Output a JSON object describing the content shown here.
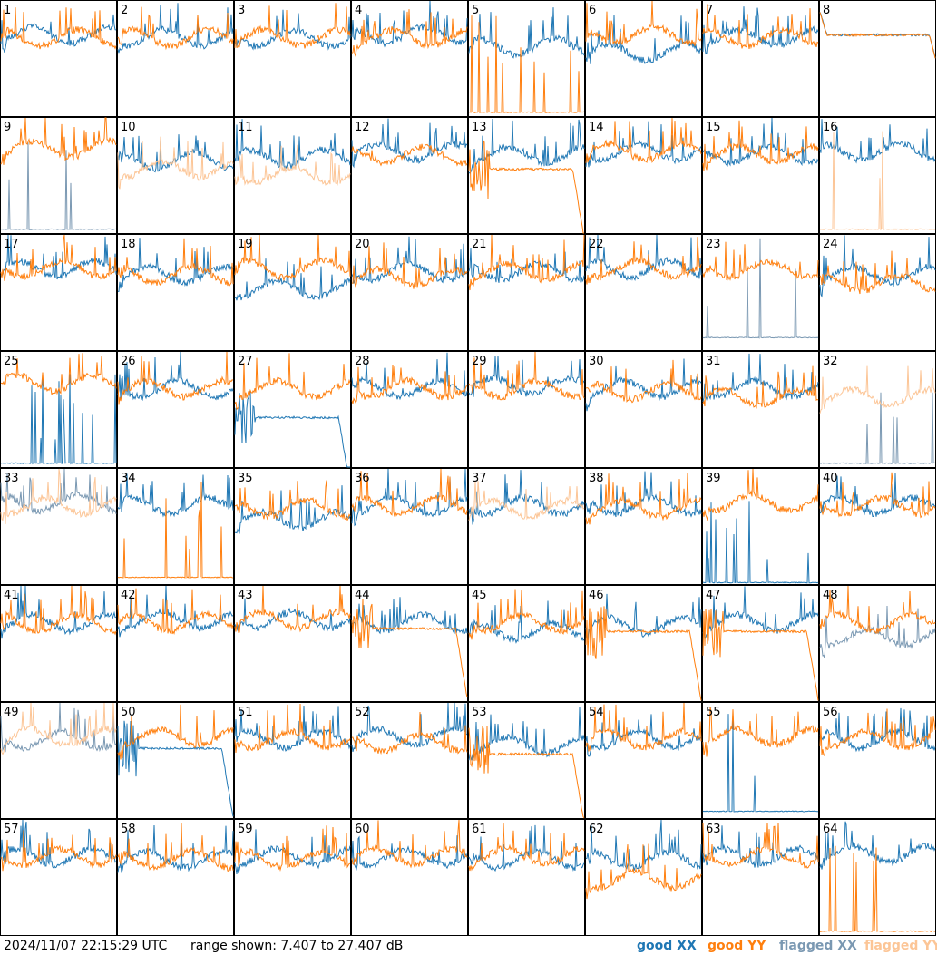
{
  "footer": {
    "timestamp": "2024/11/07 22:15:29 UTC",
    "range_text": "range shown: 7.407 to 27.407 dB"
  },
  "legend": [
    {
      "key": "good_xx",
      "label": "good XX",
      "color": "#1f77b4"
    },
    {
      "key": "good_yy",
      "label": "good YY",
      "color": "#ff7f0e"
    },
    {
      "key": "flagged_xx",
      "label": "flagged XX",
      "color": "#7a98b2"
    },
    {
      "key": "flagged_yy",
      "label": "flagged YY",
      "color": "#fcc596"
    }
  ],
  "chart_data": {
    "type": "line",
    "layout": "small-multiples 8x8",
    "ylim": [
      7.407,
      27.407
    ],
    "yunit": "dB",
    "series_names": [
      "good XX",
      "good YY",
      "flagged XX",
      "flagged YY"
    ],
    "panels": [
      {
        "id": 1,
        "xx": "good",
        "yy": "good",
        "xx_shape": "normal",
        "yy_shape": "normal",
        "xx_base": 21.5,
        "yy_base": 21.0
      },
      {
        "id": 2,
        "xx": "good",
        "yy": "good",
        "xx_shape": "normal",
        "yy_shape": "normal",
        "xx_base": 21.0,
        "yy_base": 21.0
      },
      {
        "id": 3,
        "xx": "good",
        "yy": "good",
        "xx_shape": "normal",
        "yy_shape": "normal",
        "xx_base": 21.0,
        "yy_base": 21.0
      },
      {
        "id": 4,
        "xx": "good",
        "yy": "good",
        "xx_shape": "normal",
        "yy_shape": "normal",
        "xx_base": 21.5,
        "yy_base": 21.0
      },
      {
        "id": 5,
        "xx": "good",
        "yy": "good",
        "xx_shape": "normal",
        "yy_shape": "spiky_low",
        "xx_base": 19.5,
        "yy_base": 8.0
      },
      {
        "id": 6,
        "xx": "good",
        "yy": "good",
        "xx_shape": "normal",
        "yy_shape": "normal",
        "xx_base": 18.5,
        "yy_base": 21.5
      },
      {
        "id": 7,
        "xx": "good",
        "yy": "good",
        "xx_shape": "normal",
        "yy_shape": "normal",
        "xx_base": 21.0,
        "yy_base": 21.0
      },
      {
        "id": 8,
        "xx": "good",
        "yy": "good",
        "xx_shape": "flat",
        "yy_shape": "flat",
        "xx_base": 21.5,
        "yy_base": 21.5
      },
      {
        "id": 9,
        "xx": "flagged",
        "yy": "good",
        "xx_shape": "spiky_low",
        "yy_shape": "normal",
        "xx_base": 8.0,
        "yy_base": 22.0
      },
      {
        "id": 10,
        "xx": "good",
        "yy": "flagged",
        "xx_shape": "normal",
        "yy_shape": "normal",
        "xx_base": 20.0,
        "yy_base": 18.5
      },
      {
        "id": 11,
        "xx": "good",
        "yy": "flagged",
        "xx_shape": "normal",
        "yy_shape": "normal",
        "xx_base": 20.5,
        "yy_base": 17.5
      },
      {
        "id": 12,
        "xx": "good",
        "yy": "good",
        "xx_shape": "normal",
        "yy_shape": "normal",
        "xx_base": 21.5,
        "yy_base": 21.0
      },
      {
        "id": 13,
        "xx": "good",
        "yy": "good",
        "xx_shape": "normal",
        "yy_shape": "decay",
        "xx_base": 21.0,
        "yy_base": 18.5
      },
      {
        "id": 14,
        "xx": "good",
        "yy": "good",
        "xx_shape": "normal",
        "yy_shape": "normal",
        "xx_base": 21.5,
        "yy_base": 21.5
      },
      {
        "id": 15,
        "xx": "good",
        "yy": "good",
        "xx_shape": "normal",
        "yy_shape": "normal",
        "xx_base": 21.0,
        "yy_base": 21.0
      },
      {
        "id": 16,
        "xx": "good",
        "yy": "flagged",
        "xx_shape": "normal",
        "yy_shape": "spiky_low",
        "xx_base": 21.5,
        "yy_base": 8.0
      },
      {
        "id": 17,
        "xx": "good",
        "yy": "good",
        "xx_shape": "normal",
        "yy_shape": "normal",
        "xx_base": 21.5,
        "yy_base": 21.5
      },
      {
        "id": 18,
        "xx": "good",
        "yy": "good",
        "xx_shape": "normal",
        "yy_shape": "normal",
        "xx_base": 20.5,
        "yy_base": 20.5
      },
      {
        "id": 19,
        "xx": "good",
        "yy": "good",
        "xx_shape": "normal",
        "yy_shape": "normal",
        "xx_base": 18.0,
        "yy_base": 21.5
      },
      {
        "id": 20,
        "xx": "good",
        "yy": "good",
        "xx_shape": "normal",
        "yy_shape": "normal",
        "xx_base": 21.0,
        "yy_base": 20.0
      },
      {
        "id": 21,
        "xx": "good",
        "yy": "good",
        "xx_shape": "normal",
        "yy_shape": "normal",
        "xx_base": 21.0,
        "yy_base": 21.0
      },
      {
        "id": 22,
        "xx": "good",
        "yy": "good",
        "xx_shape": "normal",
        "yy_shape": "normal",
        "xx_base": 21.5,
        "yy_base": 21.5
      },
      {
        "id": 23,
        "xx": "flagged",
        "yy": "good",
        "xx_shape": "spiky_low",
        "yy_shape": "normal",
        "xx_base": 9.5,
        "yy_base": 21.5
      },
      {
        "id": 24,
        "xx": "good",
        "yy": "good",
        "xx_shape": "normal",
        "yy_shape": "normal",
        "xx_base": 20.5,
        "yy_base": 19.0
      },
      {
        "id": 25,
        "xx": "good",
        "yy": "good",
        "xx_shape": "spiky_low",
        "yy_shape": "normal",
        "xx_base": 8.0,
        "yy_base": 22.0
      },
      {
        "id": 26,
        "xx": "good",
        "yy": "good",
        "xx_shape": "normal",
        "yy_shape": "normal",
        "xx_base": 21.0,
        "yy_base": 21.0
      },
      {
        "id": 27,
        "xx": "good",
        "yy": "good",
        "xx_shape": "decay",
        "yy_shape": "normal",
        "xx_base": 16.0,
        "yy_base": 21.0
      },
      {
        "id": 28,
        "xx": "good",
        "yy": "good",
        "xx_shape": "normal",
        "yy_shape": "normal",
        "xx_base": 21.0,
        "yy_base": 21.0
      },
      {
        "id": 29,
        "xx": "good",
        "yy": "good",
        "xx_shape": "normal",
        "yy_shape": "normal",
        "xx_base": 21.5,
        "yy_base": 21.0
      },
      {
        "id": 30,
        "xx": "good",
        "yy": "good",
        "xx_shape": "normal",
        "yy_shape": "normal",
        "xx_base": 21.0,
        "yy_base": 20.5
      },
      {
        "id": 31,
        "xx": "good",
        "yy": "good",
        "xx_shape": "normal",
        "yy_shape": "normal",
        "xx_base": 21.0,
        "yy_base": 19.5
      },
      {
        "id": 32,
        "xx": "flagged",
        "yy": "flagged",
        "xx_shape": "spiky_low",
        "yy_shape": "normal",
        "xx_base": 8.0,
        "yy_base": 19.5
      },
      {
        "id": 33,
        "xx": "flagged",
        "yy": "flagged",
        "xx_shape": "normal",
        "yy_shape": "normal",
        "xx_base": 21.5,
        "yy_base": 21.0
      },
      {
        "id": 34,
        "xx": "good",
        "yy": "good",
        "xx_shape": "normal",
        "yy_shape": "spiky_low",
        "xx_base": 21.0,
        "yy_base": 8.5
      },
      {
        "id": 35,
        "xx": "good",
        "yy": "good",
        "xx_shape": "normal",
        "yy_shape": "normal",
        "xx_base": 18.5,
        "yy_base": 20.5
      },
      {
        "id": 36,
        "xx": "good",
        "yy": "good",
        "xx_shape": "normal",
        "yy_shape": "normal",
        "xx_base": 21.0,
        "yy_base": 21.0
      },
      {
        "id": 37,
        "xx": "good",
        "yy": "flagged",
        "xx_shape": "normal",
        "yy_shape": "normal",
        "xx_base": 21.0,
        "yy_base": 20.5
      },
      {
        "id": 38,
        "xx": "good",
        "yy": "good",
        "xx_shape": "normal",
        "yy_shape": "normal",
        "xx_base": 21.0,
        "yy_base": 20.5
      },
      {
        "id": 39,
        "xx": "good",
        "yy": "good",
        "xx_shape": "spiky_low",
        "yy_shape": "normal",
        "xx_base": 7.6,
        "yy_base": 21.5
      },
      {
        "id": 40,
        "xx": "good",
        "yy": "good",
        "xx_shape": "normal",
        "yy_shape": "normal",
        "xx_base": 21.0,
        "yy_base": 21.0
      },
      {
        "id": 41,
        "xx": "good",
        "yy": "good",
        "xx_shape": "normal",
        "yy_shape": "normal",
        "xx_base": 21.0,
        "yy_base": 21.0
      },
      {
        "id": 42,
        "xx": "good",
        "yy": "good",
        "xx_shape": "normal",
        "yy_shape": "normal",
        "xx_base": 21.5,
        "yy_base": 21.0
      },
      {
        "id": 43,
        "xx": "good",
        "yy": "good",
        "xx_shape": "normal",
        "yy_shape": "normal",
        "xx_base": 21.5,
        "yy_base": 21.5
      },
      {
        "id": 44,
        "xx": "good",
        "yy": "good",
        "xx_shape": "normal",
        "yy_shape": "decay",
        "xx_base": 21.0,
        "yy_base": 20.0
      },
      {
        "id": 45,
        "xx": "good",
        "yy": "good",
        "xx_shape": "normal",
        "yy_shape": "normal",
        "xx_base": 19.5,
        "yy_base": 21.0
      },
      {
        "id": 46,
        "xx": "good",
        "yy": "good",
        "xx_shape": "normal",
        "yy_shape": "decay",
        "xx_base": 20.5,
        "yy_base": 19.5
      },
      {
        "id": 47,
        "xx": "good",
        "yy": "good",
        "xx_shape": "normal",
        "yy_shape": "decay",
        "xx_base": 21.0,
        "yy_base": 19.5
      },
      {
        "id": 48,
        "xx": "flagged",
        "yy": "good",
        "xx_shape": "normal",
        "yy_shape": "normal",
        "xx_base": 18.5,
        "yy_base": 21.0
      },
      {
        "id": 49,
        "xx": "flagged",
        "yy": "flagged",
        "xx_shape": "normal",
        "yy_shape": "normal",
        "xx_base": 21.0,
        "yy_base": 21.5
      },
      {
        "id": 50,
        "xx": "good",
        "yy": "good",
        "xx_shape": "decay",
        "yy_shape": "normal",
        "xx_base": 19.5,
        "yy_base": 21.5
      },
      {
        "id": 51,
        "xx": "good",
        "yy": "good",
        "xx_shape": "normal",
        "yy_shape": "normal",
        "xx_base": 21.0,
        "yy_base": 21.0
      },
      {
        "id": 52,
        "xx": "good",
        "yy": "good",
        "xx_shape": "normal",
        "yy_shape": "normal",
        "xx_base": 21.5,
        "yy_base": 20.5
      },
      {
        "id": 53,
        "xx": "good",
        "yy": "good",
        "xx_shape": "normal",
        "yy_shape": "decay",
        "xx_base": 20.0,
        "yy_base": 18.5
      },
      {
        "id": 54,
        "xx": "good",
        "yy": "good",
        "xx_shape": "normal",
        "yy_shape": "normal",
        "xx_base": 21.0,
        "yy_base": 21.0
      },
      {
        "id": 55,
        "xx": "good",
        "yy": "good",
        "xx_shape": "spiky_low",
        "yy_shape": "normal",
        "xx_base": 8.5,
        "yy_base": 21.5
      },
      {
        "id": 56,
        "xx": "good",
        "yy": "good",
        "xx_shape": "normal",
        "yy_shape": "normal",
        "xx_base": 21.0,
        "yy_base": 21.0
      },
      {
        "id": 57,
        "xx": "good",
        "yy": "good",
        "xx_shape": "normal",
        "yy_shape": "normal",
        "xx_base": 21.0,
        "yy_base": 21.0
      },
      {
        "id": 58,
        "xx": "good",
        "yy": "good",
        "xx_shape": "normal",
        "yy_shape": "normal",
        "xx_base": 20.5,
        "yy_base": 20.5
      },
      {
        "id": 59,
        "xx": "good",
        "yy": "good",
        "xx_shape": "normal",
        "yy_shape": "normal",
        "xx_base": 21.0,
        "yy_base": 20.5
      },
      {
        "id": 60,
        "xx": "good",
        "yy": "good",
        "xx_shape": "normal",
        "yy_shape": "normal",
        "xx_base": 21.0,
        "yy_base": 21.0
      },
      {
        "id": 61,
        "xx": "good",
        "yy": "good",
        "xx_shape": "normal",
        "yy_shape": "normal",
        "xx_base": 20.5,
        "yy_base": 21.0
      },
      {
        "id": 62,
        "xx": "good",
        "yy": "good",
        "xx_shape": "normal",
        "yy_shape": "normal",
        "xx_base": 20.5,
        "yy_base": 17.0
      },
      {
        "id": 63,
        "xx": "good",
        "yy": "good",
        "xx_shape": "normal",
        "yy_shape": "normal",
        "xx_base": 21.0,
        "yy_base": 21.0
      },
      {
        "id": 64,
        "xx": "good",
        "yy": "good",
        "xx_shape": "normal",
        "yy_shape": "spiky_low",
        "xx_base": 21.5,
        "yy_base": 8.0
      }
    ]
  }
}
